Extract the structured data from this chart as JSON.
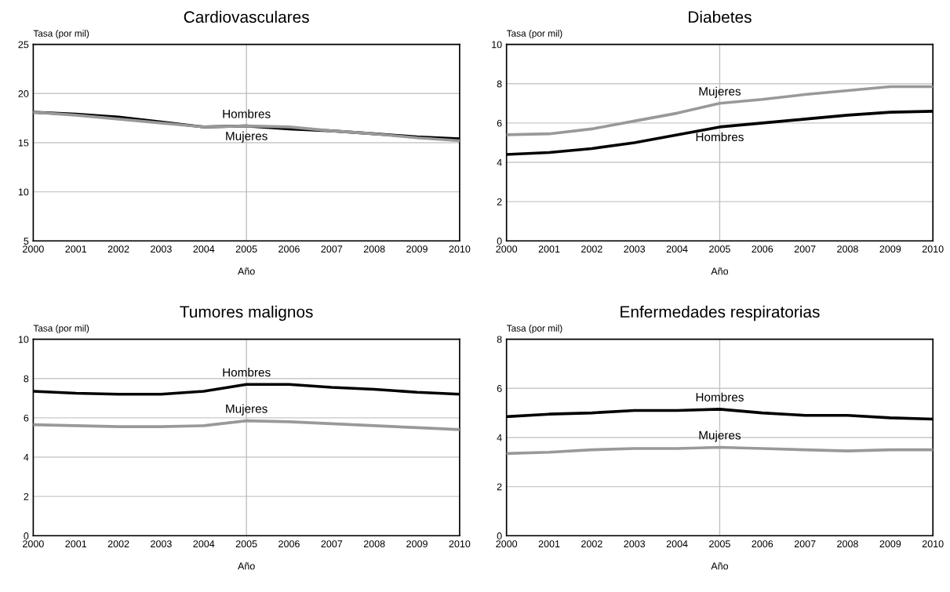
{
  "chart_data": [
    {
      "type": "line",
      "title": "Cardiovasculares",
      "ylabel": "Tasa (por mil)",
      "xlabel": "Año",
      "x": [
        2000,
        2001,
        2002,
        2003,
        2004,
        2005,
        2006,
        2007,
        2008,
        2009,
        2010
      ],
      "xlim": [
        2000,
        2010
      ],
      "xticks": [
        2000,
        2001,
        2002,
        2003,
        2004,
        2005,
        2006,
        2007,
        2008,
        2009,
        2010
      ],
      "ylim": [
        5,
        25
      ],
      "yticks": [
        5,
        10,
        15,
        20,
        25
      ],
      "grid": "y",
      "legend": false,
      "marker": "none",
      "line_style": "solid",
      "series": [
        {
          "name": "Hombres",
          "color": "#000000",
          "values": [
            18.1,
            17.9,
            17.6,
            17.1,
            16.6,
            16.7,
            16.4,
            16.2,
            15.9,
            15.6,
            15.4
          ]
        },
        {
          "name": "Mujeres",
          "color": "#999999",
          "values": [
            18.1,
            17.8,
            17.4,
            17.0,
            16.6,
            16.7,
            16.6,
            16.2,
            15.9,
            15.5,
            15.2
          ]
        }
      ],
      "ref_lines": [
        {
          "axis": "x",
          "value": 2005,
          "color": "#c0c0c0"
        }
      ]
    },
    {
      "type": "line",
      "title": "Diabetes",
      "ylabel": "Tasa (por mil)",
      "xlabel": "Año",
      "x": [
        2000,
        2001,
        2002,
        2003,
        2004,
        2005,
        2006,
        2007,
        2008,
        2009,
        2010
      ],
      "xlim": [
        2000,
        2010
      ],
      "xticks": [
        2000,
        2001,
        2002,
        2003,
        2004,
        2005,
        2006,
        2007,
        2008,
        2009,
        2010
      ],
      "ylim": [
        0,
        10
      ],
      "yticks": [
        0,
        2,
        4,
        6,
        8,
        10
      ],
      "grid": "y",
      "legend": false,
      "marker": "none",
      "line_style": "solid",
      "series": [
        {
          "name": "Hombres",
          "color": "#000000",
          "values": [
            4.4,
            4.5,
            4.7,
            5.0,
            5.4,
            5.8,
            6.0,
            6.2,
            6.4,
            6.55,
            6.6
          ]
        },
        {
          "name": "Mujeres",
          "color": "#999999",
          "values": [
            5.4,
            5.45,
            5.7,
            6.1,
            6.5,
            7.0,
            7.2,
            7.45,
            7.65,
            7.85,
            7.85
          ]
        }
      ],
      "ref_lines": [
        {
          "axis": "x",
          "value": 2005,
          "color": "#c0c0c0"
        }
      ]
    },
    {
      "type": "line",
      "title": "Tumores malignos",
      "ylabel": "Tasa (por mil)",
      "xlabel": "Año",
      "x": [
        2000,
        2001,
        2002,
        2003,
        2004,
        2005,
        2006,
        2007,
        2008,
        2009,
        2010
      ],
      "xlim": [
        2000,
        2010
      ],
      "xticks": [
        2000,
        2001,
        2002,
        2003,
        2004,
        2005,
        2006,
        2007,
        2008,
        2009,
        2010
      ],
      "ylim": [
        0,
        10
      ],
      "yticks": [
        0,
        2,
        4,
        6,
        8,
        10
      ],
      "grid": "y",
      "legend": false,
      "marker": "none",
      "line_style": "solid",
      "series": [
        {
          "name": "Hombres",
          "color": "#000000",
          "values": [
            7.35,
            7.25,
            7.2,
            7.2,
            7.35,
            7.7,
            7.7,
            7.55,
            7.45,
            7.3,
            7.2
          ]
        },
        {
          "name": "Mujeres",
          "color": "#999999",
          "values": [
            5.65,
            5.6,
            5.55,
            5.55,
            5.6,
            5.85,
            5.8,
            5.7,
            5.6,
            5.5,
            5.4
          ]
        }
      ],
      "ref_lines": [
        {
          "axis": "x",
          "value": 2005,
          "color": "#c0c0c0"
        }
      ]
    },
    {
      "type": "line",
      "title": "Enfermedades respiratorias",
      "ylabel": "Tasa (por mil)",
      "xlabel": "Año",
      "x": [
        2000,
        2001,
        2002,
        2003,
        2004,
        2005,
        2006,
        2007,
        2008,
        2009,
        2010
      ],
      "xlim": [
        2000,
        2010
      ],
      "xticks": [
        2000,
        2001,
        2002,
        2003,
        2004,
        2005,
        2006,
        2007,
        2008,
        2009,
        2010
      ],
      "ylim": [
        0,
        8
      ],
      "yticks": [
        0,
        2,
        4,
        6,
        8
      ],
      "grid": "y",
      "legend": false,
      "marker": "none",
      "line_style": "solid",
      "series": [
        {
          "name": "Hombres",
          "color": "#000000",
          "values": [
            4.85,
            4.95,
            5.0,
            5.1,
            5.1,
            5.15,
            5.0,
            4.9,
            4.9,
            4.8,
            4.75
          ]
        },
        {
          "name": "Mujeres",
          "color": "#999999",
          "values": [
            3.35,
            3.4,
            3.5,
            3.55,
            3.55,
            3.6,
            3.55,
            3.5,
            3.45,
            3.5,
            3.5
          ]
        }
      ],
      "ref_lines": [
        {
          "axis": "x",
          "value": 2005,
          "color": "#c0c0c0"
        }
      ]
    }
  ]
}
